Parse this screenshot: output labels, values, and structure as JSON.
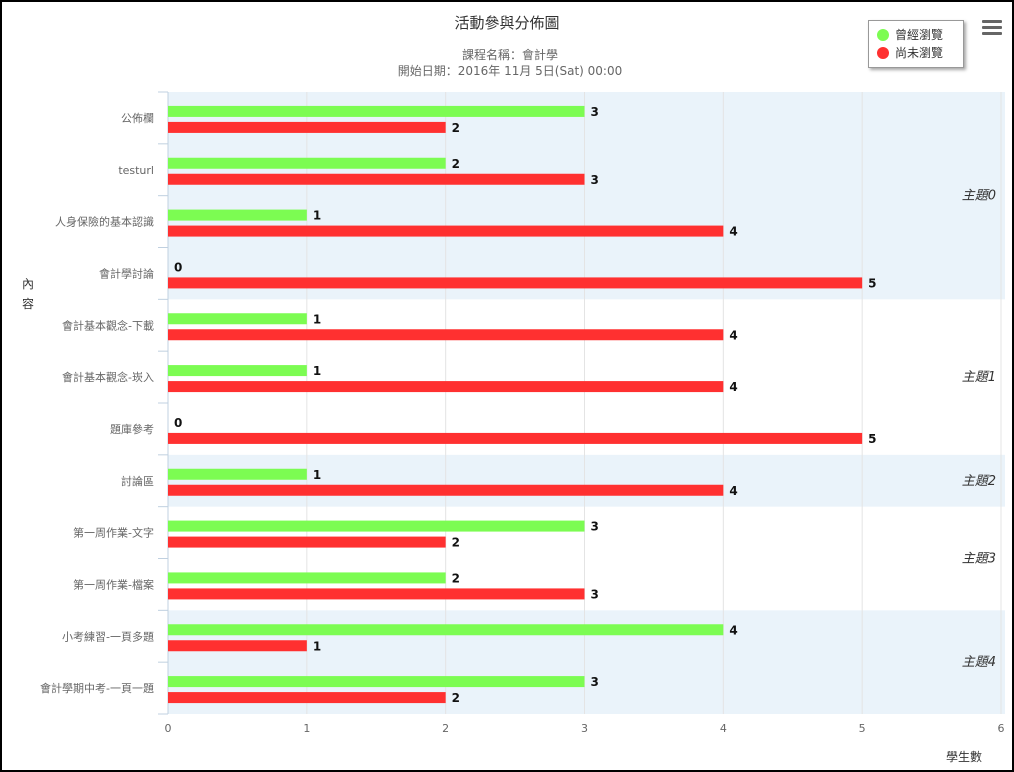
{
  "title": "活動參與分佈圖",
  "subtitle_line1": "課程名稱：會計學",
  "subtitle_line2": "開始日期：2016年 11月 5日(Sat) 00:00",
  "menu": {
    "icon": "hamburger-menu-icon"
  },
  "legend": [
    {
      "label": "曾經瀏覽",
      "color": "#7cfc52"
    },
    {
      "label": "尚未瀏覽",
      "color": "#ff3030"
    }
  ],
  "colors": {
    "band": "#eaf3fa",
    "grid": "#e4e4e4",
    "axis": "#c0d0e0"
  },
  "chart_data": {
    "type": "bar",
    "orientation": "horizontal",
    "title": "活動參與分佈圖",
    "subtitle": "課程名稱：會計學 / 開始日期：2016年 11月 5日(Sat) 00:00",
    "ylabel": "內容",
    "xlabel": "學生數",
    "xlim": [
      0,
      6
    ],
    "xticks": [
      "0",
      "1",
      "2",
      "3",
      "4",
      "5",
      "6"
    ],
    "grid": true,
    "legend_position": "top-right",
    "categories": [
      "公佈欄",
      "testurl",
      "人身保險的基本認識",
      "會計學討論",
      "會計基本觀念-下載",
      "會計基本觀念-崁入",
      "題庫參考",
      "討論區",
      "第一周作業-文字",
      "第一周作業-檔案",
      "小考練習-一頁多題",
      "會計學期中考-一頁一題"
    ],
    "series": [
      {
        "name": "曾經瀏覽",
        "color": "#7cfc52",
        "values": [
          3,
          2,
          1,
          0,
          1,
          1,
          0,
          1,
          3,
          2,
          4,
          3
        ]
      },
      {
        "name": "尚未瀏覽",
        "color": "#ff3030",
        "values": [
          2,
          3,
          4,
          5,
          4,
          4,
          5,
          4,
          2,
          3,
          1,
          2
        ]
      }
    ],
    "groups": [
      {
        "label": "主題0",
        "count": 4,
        "shaded": true
      },
      {
        "label": "主題1",
        "count": 3,
        "shaded": false
      },
      {
        "label": "主題2",
        "count": 1,
        "shaded": true
      },
      {
        "label": "主題3",
        "count": 2,
        "shaded": false
      },
      {
        "label": "主題4",
        "count": 2,
        "shaded": true
      }
    ]
  }
}
